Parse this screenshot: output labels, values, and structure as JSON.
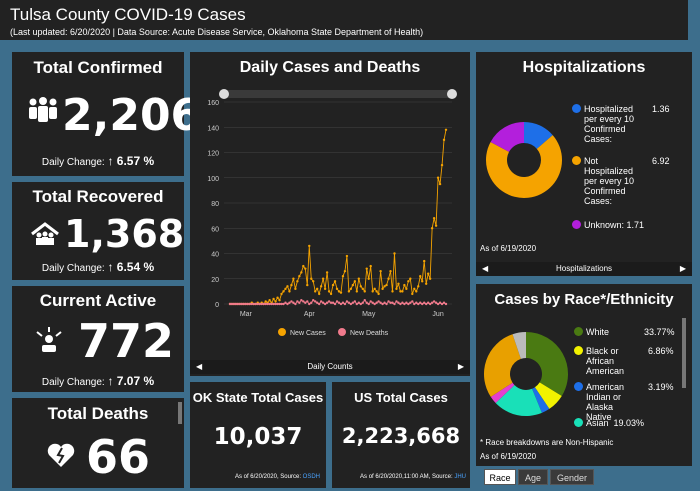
{
  "header": {
    "title": "Tulsa County COVID-19 Cases",
    "subtitle": "(Last updated: 6/20/2020 | Data Source: Acute Disease Service, Oklahoma State Department of Health)"
  },
  "cards": {
    "confirmed": {
      "title": "Total Confirmed",
      "value": "2,206",
      "change_label": "Daily Change:",
      "change_value": "6.57 %"
    },
    "recovered": {
      "title": "Total Recovered",
      "value": "1,368",
      "change_label": "Daily Change:",
      "change_value": "6.54 %"
    },
    "active": {
      "title": "Current Active",
      "value": "772",
      "change_label": "Daily Change:",
      "change_value": "7.07 %"
    },
    "deaths": {
      "title": "Total Deaths",
      "value": "66"
    }
  },
  "daily_chart": {
    "footer_label": "Daily Counts",
    "legend": [
      "New Cases",
      "New Deaths"
    ],
    "colors": {
      "cases": "#f5a300",
      "deaths": "#f07a8c"
    }
  },
  "chart_data": {
    "type": "line",
    "title": "Daily Cases and Deaths",
    "xlabel": "",
    "ylabel": "",
    "ylim": [
      0,
      160
    ],
    "yticks": [
      0,
      20,
      40,
      60,
      80,
      100,
      120,
      140,
      160
    ],
    "xticks": [
      "Mar",
      "Apr",
      "May",
      "Jun"
    ],
    "grid": true,
    "legend_position": "bottom",
    "series": [
      {
        "name": "New Cases",
        "values": [
          0,
          0,
          0,
          0,
          0,
          0,
          0,
          0,
          0,
          0,
          0,
          1,
          0,
          0,
          1,
          0,
          1,
          0,
          2,
          1,
          3,
          1,
          4,
          2,
          5,
          3,
          8,
          10,
          12,
          14,
          10,
          15,
          20,
          12,
          18,
          22,
          25,
          30,
          28,
          15,
          46,
          20,
          18,
          10,
          12,
          8,
          14,
          20,
          12,
          25,
          10,
          8,
          15,
          18,
          12,
          10,
          9,
          22,
          26,
          38,
          10,
          12,
          15,
          18,
          10,
          20,
          14,
          12,
          10,
          28,
          20,
          30,
          10,
          12,
          10,
          8,
          26,
          12,
          14,
          15,
          20,
          26,
          10,
          40,
          12,
          16,
          10,
          10,
          15,
          12,
          18,
          20,
          8,
          12,
          10,
          14,
          22,
          18,
          34,
          16,
          24,
          20,
          60,
          68,
          62,
          100,
          95,
          110,
          130,
          138
        ]
      },
      {
        "name": "New Deaths",
        "values": [
          0,
          0,
          0,
          0,
          0,
          0,
          0,
          0,
          0,
          0,
          0,
          0,
          0,
          0,
          0,
          0,
          0,
          0,
          0,
          0,
          0,
          0,
          0,
          0,
          0,
          0,
          0,
          0,
          1,
          0,
          1,
          2,
          1,
          0,
          2,
          1,
          3,
          2,
          1,
          2,
          0,
          1,
          3,
          2,
          1,
          0,
          2,
          1,
          0,
          1,
          2,
          1,
          1,
          0,
          2,
          1,
          0,
          1,
          0,
          2,
          1,
          0,
          1,
          2,
          0,
          1,
          0,
          1,
          3,
          1,
          0,
          2,
          1,
          0,
          1,
          2,
          1,
          0,
          1,
          0,
          2,
          1,
          1,
          0,
          2,
          1,
          0,
          1,
          0,
          1,
          0,
          1,
          2,
          0,
          1,
          0,
          1,
          0,
          1,
          0,
          1,
          0,
          1,
          2,
          1,
          0,
          1,
          0,
          1,
          0
        ]
      }
    ]
  },
  "state_cases": {
    "title": "OK State Total Cases",
    "value": "10,037",
    "source_text": "As of 6/20/2020, Source:",
    "source_link": "OSDH"
  },
  "us_cases": {
    "title": "US Total Cases",
    "value": "2,223,668",
    "source_text": "As of 6/20/2020,11:00 AM, Source:",
    "source_link": "JHU"
  },
  "hospitalizations": {
    "title": "Hospitalizations",
    "items": [
      {
        "label": "Hospitalized per every 10 Confirmed Cases:",
        "value": "1.36",
        "color": "#1e6fe8"
      },
      {
        "label": "Not Hospitalized per every 10 Confirmed Cases:",
        "value": "6.92",
        "color": "#f5a300"
      },
      {
        "label": "Unknown:",
        "value": "1.71",
        "color": "#b31fdc"
      }
    ],
    "as_of": "As of 6/19/2020",
    "footer_label": "Hospitalizations"
  },
  "race": {
    "title": "Cases by Race*/Ethnicity",
    "items": [
      {
        "label": "White",
        "value": "33.77%",
        "color": "#4a7a12"
      },
      {
        "label": "Black or African American",
        "value": "6.86%",
        "color": "#f2f200"
      },
      {
        "label": "American Indian or Alaska Native",
        "value": "3.19%",
        "color": "#1e6fe8"
      },
      {
        "label": "Asian",
        "value": "19.03%",
        "color": "#19e0b8"
      }
    ],
    "note": "* Race breakdowns are Non-Hispanic",
    "as_of": "As of 6/19/2020",
    "tabs": [
      "Race",
      "Age",
      "Gender"
    ]
  }
}
